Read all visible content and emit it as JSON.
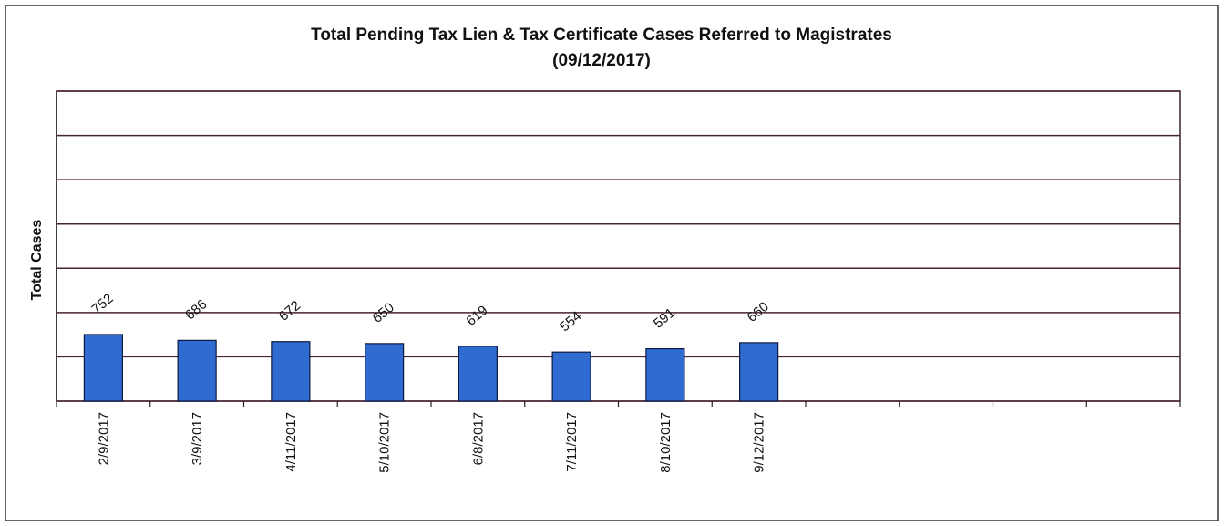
{
  "chart_data": {
    "type": "bar",
    "title": "Total Pending Tax Lien & Tax Certificate Cases Referred to Magistrates",
    "subtitle": "(09/12/2017)",
    "y_label": "Total Cases",
    "categories": [
      "2/9/2017",
      "3/9/2017",
      "4/11/2017",
      "5/10/2017",
      "6/8/2017",
      "7/11/2017",
      "8/10/2017",
      "9/12/2017",
      null,
      null,
      null,
      null
    ],
    "values": [
      752,
      686,
      672,
      650,
      619,
      554,
      591,
      660,
      null,
      null,
      null,
      null
    ],
    "color": "#2f6bd0",
    "ylim": [
      0,
      3500
    ],
    "yticks": [
      0,
      500,
      1000,
      1500,
      2000,
      2500,
      3000,
      3500
    ],
    "grid": true
  }
}
